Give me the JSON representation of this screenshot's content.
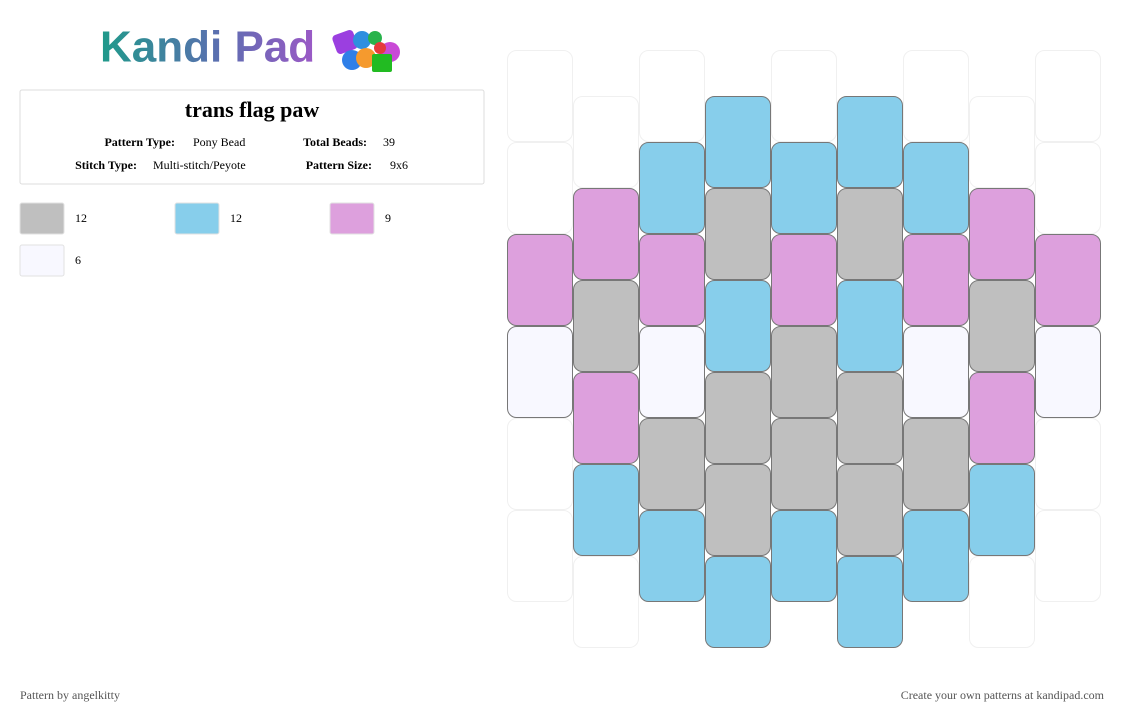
{
  "logo": "Kandi Pad",
  "title": "trans flag paw",
  "details": [
    {
      "label": "Pattern Type:",
      "value": "Pony Bead"
    },
    {
      "label": "Total Beads:",
      "value": 39
    },
    {
      "label": "Stitch Type:",
      "value": "Multi-stitch/Peyote"
    },
    {
      "label": "Pattern Size:",
      "value": "9x6"
    }
  ],
  "colors": [
    {
      "color": "#bfbfbf",
      "count": 12
    },
    {
      "color": "#87ceeb",
      "count": 12
    },
    {
      "color": "#dda0dd",
      "count": 9
    },
    {
      "color": "#f8f8ff",
      "count": 6
    }
  ],
  "footer": {
    "credit": "Pattern by angelkitty",
    "link": "Create your own patterns at kandipad.com"
  }
}
